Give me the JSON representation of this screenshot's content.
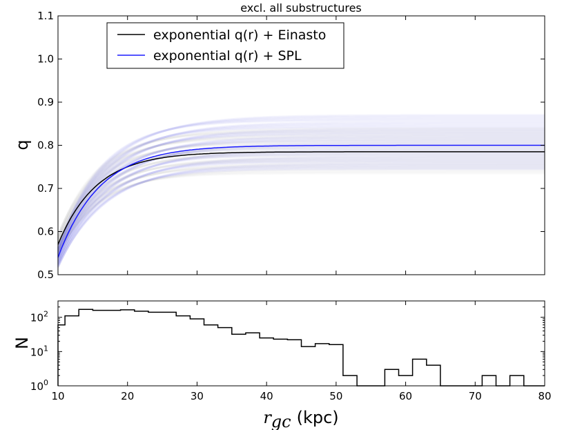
{
  "chart_data": [
    {
      "type": "line",
      "title": "excl. all substructures",
      "xlabel": "",
      "ylabel": "q",
      "xlim": [
        10,
        80
      ],
      "ylim": [
        0.5,
        1.1
      ],
      "yticks": [
        "0.5",
        "0.6",
        "0.7",
        "0.8",
        "0.9",
        "1.0",
        "1.1"
      ],
      "series": [
        {
          "name": "exponential q(r) + Einasto",
          "color": "#000000",
          "q0": 0.57,
          "qinf": 0.785,
          "rq": 5.5,
          "band": [
            0.735,
            0.84
          ]
        },
        {
          "name": "exponential q(r) + SPL",
          "color": "#1a1aff",
          "q0": 0.54,
          "qinf": 0.8,
          "rq": 6.0,
          "band": [
            0.745,
            0.87
          ]
        }
      ],
      "legend": "top-left"
    },
    {
      "type": "histogram",
      "xlabel_math": "r",
      "xlabel_sub": "gc",
      "xlabel_unit": "(kpc)",
      "ylabel": "N",
      "yscale": "log",
      "ylim": [
        1,
        300
      ],
      "yticks": [
        {
          "base": "10",
          "exp": "0"
        },
        {
          "base": "10",
          "exp": "1"
        },
        {
          "base": "10",
          "exp": "2"
        }
      ],
      "xticks": [
        "10",
        "20",
        "30",
        "40",
        "50",
        "60",
        "70",
        "80"
      ],
      "bin_edges": [
        10,
        11,
        13,
        15,
        17,
        19,
        21,
        23,
        25,
        27,
        29,
        31,
        33,
        35,
        37,
        39,
        41,
        43,
        45,
        47,
        49,
        51,
        53,
        55,
        57,
        59,
        61,
        63,
        65,
        67,
        69,
        71,
        73,
        75,
        77,
        79,
        80
      ],
      "counts": [
        60,
        110,
        170,
        160,
        160,
        165,
        150,
        140,
        140,
        110,
        90,
        60,
        50,
        32,
        35,
        25,
        23,
        22,
        14,
        17,
        16,
        2,
        1,
        1,
        3,
        2,
        6,
        4,
        1,
        1,
        1,
        2,
        1,
        2,
        1,
        1
      ]
    }
  ]
}
